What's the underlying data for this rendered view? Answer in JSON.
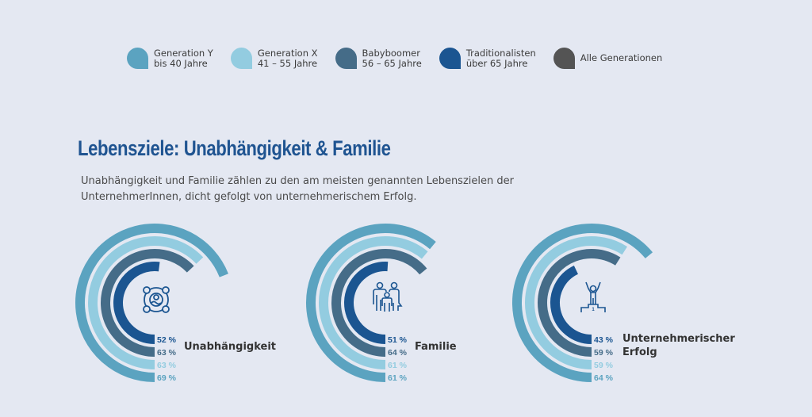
{
  "legend": [
    {
      "key": "gen_y",
      "line1": "Generation Y",
      "line2": "bis 40 Jahre",
      "color": "#5ba3c0"
    },
    {
      "key": "gen_x",
      "line1": "Generation X",
      "line2": "41 – 55 Jahre",
      "color": "#93cce0"
    },
    {
      "key": "boomer",
      "line1": "Babyboomer",
      "line2": "56 – 65 Jahre",
      "color": "#456c88"
    },
    {
      "key": "trad",
      "line1": "Traditionalisten",
      "line2": "über 65 Jahre",
      "color": "#1b5591"
    },
    {
      "key": "all",
      "line1": "Alle Generationen",
      "line2": "",
      "color": "#545454"
    }
  ],
  "header": {
    "title": "Lebensziele: Unabhängigkeit & Familie",
    "subtitle": "Unabhängigkeit und Familie zählen zu den am meisten genannten Lebenszielen der UnternehmerInnen, dicht gefolgt von unternehmerischem Erfolg."
  },
  "chart_data": {
    "type": "radial-bar",
    "title": "Lebensziele: Unabhängigkeit & Familie",
    "unit": "%",
    "series_order_inner_to_outer": [
      "Traditionalisten",
      "Babyboomer",
      "Generation X",
      "Generation Y"
    ],
    "series_colors": {
      "Traditionalisten": "#1b5591",
      "Babyboomer": "#456c88",
      "Generation X": "#93cce0",
      "Generation Y": "#5ba3c0"
    },
    "groups": [
      {
        "category": "Unabhängigkeit",
        "icon": "independence-icon",
        "values": {
          "Traditionalisten": 52,
          "Babyboomer": 63,
          "Generation X": 63,
          "Generation Y": 69
        }
      },
      {
        "category": "Familie",
        "icon": "family-icon",
        "values": {
          "Traditionalisten": 51,
          "Babyboomer": 64,
          "Generation X": 61,
          "Generation Y": 61
        }
      },
      {
        "category": "Unternehmerischer Erfolg",
        "icon": "podium-winner-icon",
        "values": {
          "Traditionalisten": 43,
          "Babyboomer": 59,
          "Generation X": 59,
          "Generation Y": 64
        }
      }
    ],
    "pct_label_suffix": " %"
  }
}
